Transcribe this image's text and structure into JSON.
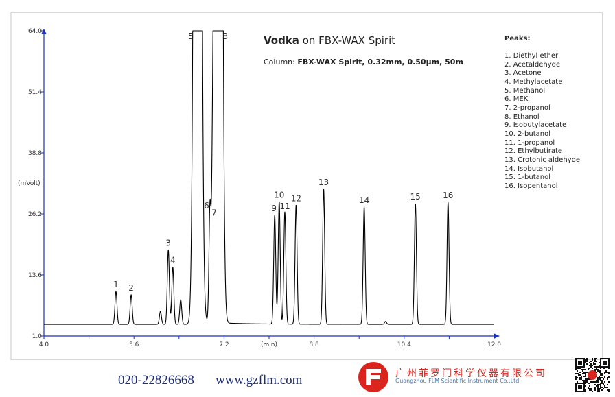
{
  "chart_data": {
    "type": "line",
    "title_bold": "Vodka",
    "title_rest": " on FBX-WAX Spirit",
    "column_label": "Column: ",
    "column_value": "FBX-WAX Spirit, 0.32mm, 0.50µm, 50m",
    "xlabel": "(min)",
    "ylabel": "(mVolt)",
    "xlim": [
      4.0,
      12.0
    ],
    "ylim": [
      1.0,
      64.0
    ],
    "x_tick_labels": [
      "4.0",
      "5.6",
      "7.2",
      "8.8",
      "10.4",
      "12.0"
    ],
    "x_tick_values": [
      4.0,
      5.6,
      7.2,
      8.8,
      10.4,
      12.0
    ],
    "x_minor_ticks": [
      4.8,
      6.4,
      8.0,
      9.6,
      11.2
    ],
    "y_tick_labels": [
      "64.0",
      "51.4",
      "38.8",
      "26.2",
      "13.6",
      "1.0"
    ],
    "y_tick_values": [
      64.0,
      51.4,
      38.8,
      26.2,
      13.6,
      1.0
    ],
    "baseline": 3.4,
    "grid": false,
    "axis_color": "#1a2fbf",
    "trace_color": "#000000",
    "peaks_heading": "Peaks:",
    "peaks": [
      {
        "number": "1",
        "name": "1. Diethyl ether",
        "time": 5.28,
        "height": 10.2
      },
      {
        "number": "2",
        "name": "2. Acetaldehyde",
        "time": 5.55,
        "height": 9.5
      },
      {
        "number": "3",
        "name": "3. Acetone",
        "time": 6.21,
        "height": 18.8
      },
      {
        "number": "4",
        "name": "4. Methylacetate",
        "time": 6.29,
        "height": 15.2
      },
      {
        "number": "5",
        "name": "5. Methanol",
        "time": 6.73,
        "height": 64.0
      },
      {
        "number": "6",
        "name": "6. MEK",
        "time": 6.95,
        "height": 26.5
      },
      {
        "number": "7",
        "name": "7. 2-propanol",
        "time": 7.0,
        "height": 25.4
      },
      {
        "number": "8",
        "name": "8. Ethanol",
        "time": 7.1,
        "height": 64.0
      },
      {
        "number": "9",
        "name": "9. Isobutylacetate",
        "time": 8.1,
        "height": 25.9
      },
      {
        "number": "10",
        "name": "10. 2-butanol",
        "time": 8.18,
        "height": 28.7
      },
      {
        "number": "11",
        "name": "11. 1-propanol",
        "time": 8.28,
        "height": 26.6
      },
      {
        "number": "12",
        "name": "12. Ethylbutirate",
        "time": 8.48,
        "height": 28.0
      },
      {
        "number": "13",
        "name": "13. Crotonic aldehyde",
        "time": 8.97,
        "height": 31.3
      },
      {
        "number": "14",
        "name": "14. Isobutanol",
        "time": 9.69,
        "height": 27.6
      },
      {
        "number": "15",
        "name": "15. 1-butanol",
        "time": 10.6,
        "height": 28.3
      },
      {
        "number": "16",
        "name": "16. Isopentanol",
        "time": 11.18,
        "height": 28.6
      }
    ],
    "minor_peaks": [
      {
        "time": 6.07,
        "height": 6.1
      },
      {
        "time": 6.43,
        "height": 8.5
      },
      {
        "time": 10.07,
        "height": 4.0
      }
    ]
  },
  "footer": {
    "phone": "020-22826668",
    "url": "www.gzflm.com",
    "company_cn": "广州菲罗门科学仪器有限公司",
    "company_en": "Guangzhou FLM Scientific Instrument Co.,Ltd",
    "brand_color": "#d9251d"
  }
}
